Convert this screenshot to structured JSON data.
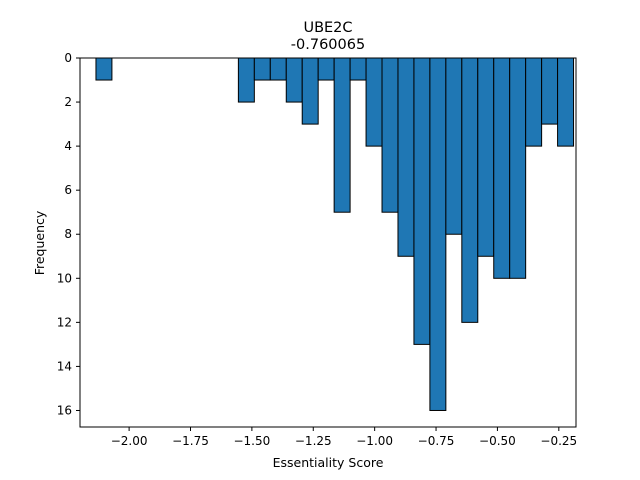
{
  "chart_data": {
    "type": "bar",
    "title": "UBE2C",
    "subtitle": "-0.760065",
    "xlabel": "Essentiality Score",
    "ylabel": "Frequency",
    "xlim": [
      -2.2,
      -0.18
    ],
    "ylim": [
      16.75,
      0
    ],
    "y_inverted": true,
    "bin_width": 0.065,
    "grid": false,
    "bar_color": "#1f77b4",
    "edge_color": "#000000",
    "x_ticks": [
      -2.0,
      -1.75,
      -1.5,
      -1.25,
      -1.0,
      -0.75,
      -0.5,
      -0.25
    ],
    "x_tick_labels": [
      "−2.00",
      "−1.75",
      "−1.50",
      "−1.25",
      "−1.00",
      "−0.75",
      "−0.50",
      "−0.25"
    ],
    "y_ticks": [
      0,
      2,
      4,
      6,
      8,
      10,
      12,
      14,
      16
    ],
    "y_tick_labels": [
      "0",
      "2",
      "4",
      "6",
      "8",
      "10",
      "12",
      "14",
      "16"
    ],
    "bins": [
      {
        "x_left": -2.135,
        "count": 1
      },
      {
        "x_left": -1.555,
        "count": 2
      },
      {
        "x_left": -1.49,
        "count": 1
      },
      {
        "x_left": -1.425,
        "count": 1
      },
      {
        "x_left": -1.36,
        "count": 2
      },
      {
        "x_left": -1.295,
        "count": 3
      },
      {
        "x_left": -1.23,
        "count": 1
      },
      {
        "x_left": -1.165,
        "count": 7
      },
      {
        "x_left": -1.1,
        "count": 1
      },
      {
        "x_left": -1.035,
        "count": 4
      },
      {
        "x_left": -0.97,
        "count": 7
      },
      {
        "x_left": -0.905,
        "count": 9
      },
      {
        "x_left": -0.84,
        "count": 13
      },
      {
        "x_left": -0.775,
        "count": 16
      },
      {
        "x_left": -0.71,
        "count": 8
      },
      {
        "x_left": -0.645,
        "count": 12
      },
      {
        "x_left": -0.58,
        "count": 9
      },
      {
        "x_left": -0.515,
        "count": 10
      },
      {
        "x_left": -0.45,
        "count": 10
      },
      {
        "x_left": -0.385,
        "count": 4
      },
      {
        "x_left": -0.32,
        "count": 3
      },
      {
        "x_left": -0.255,
        "count": 4
      }
    ]
  }
}
